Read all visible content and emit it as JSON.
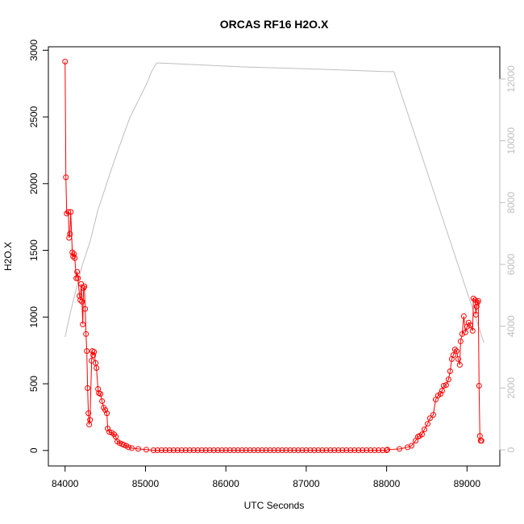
{
  "chart_data": {
    "type": "line",
    "title": "ORCAS RF16 H2O.X",
    "x_label": "UTC Seconds",
    "y_label": "H2O.X",
    "xlim": [
      83792,
      89408
    ],
    "xticks": [
      84000,
      85000,
      86000,
      87000,
      88000,
      89000
    ],
    "ylim": [
      -116,
      3026
    ],
    "yticks": [
      0,
      500,
      1000,
      1500,
      2000,
      2500,
      3000
    ],
    "y2lim": [
      -522,
      13043
    ],
    "y2ticks": [
      0,
      2000,
      4000,
      6000,
      8000,
      10000,
      12000
    ],
    "series": [
      {
        "color": "#bebebe",
        "axis": "y2",
        "markers": false,
        "x": [
          84000,
          84060,
          84210,
          84310,
          84410,
          84510,
          84610,
          84710,
          84810,
          84910,
          85010,
          85080,
          85140,
          86210,
          87210,
          88010,
          88090,
          89210
        ],
        "values": [
          3652,
          4383,
          5948,
          6731,
          7774,
          8557,
          9340,
          10070,
          10775,
          11297,
          11818,
          12262,
          12522,
          12392,
          12314,
          12236,
          12236,
          3470
        ]
      },
      {
        "color": "#ff0000",
        "axis": "y",
        "markers": true,
        "x": [
          84000,
          84010,
          84020,
          84040,
          84050,
          84060,
          84070,
          84090,
          84100,
          84110,
          84120,
          84140,
          84150,
          84160,
          84180,
          84190,
          84200,
          84210,
          84220,
          84230,
          84240,
          84250,
          84260,
          84270,
          84280,
          84290,
          84300,
          84310,
          84330,
          84340,
          84350,
          84360,
          84380,
          84390,
          84410,
          84420,
          84440,
          84460,
          84480,
          84500,
          84520,
          84530,
          84550,
          84580,
          84610,
          84630,
          84650,
          84680,
          84710,
          84730,
          84760,
          84790,
          84830,
          84910,
          85010,
          85100,
          85150,
          85200,
          85250,
          85300,
          85350,
          85400,
          85450,
          85500,
          85550,
          85600,
          85650,
          85700,
          85750,
          85800,
          85850,
          85900,
          85950,
          86000,
          86050,
          86100,
          86150,
          86200,
          86250,
          86300,
          86350,
          86400,
          86450,
          86500,
          86550,
          86600,
          86650,
          86700,
          86750,
          86800,
          86850,
          86900,
          86950,
          87000,
          87050,
          87100,
          87150,
          87200,
          87250,
          87300,
          87350,
          87400,
          87450,
          87500,
          87550,
          87600,
          87650,
          87700,
          87750,
          87800,
          87850,
          87900,
          87950,
          88000,
          88010,
          88160,
          88260,
          88310,
          88360,
          88390,
          88410,
          88440,
          88470,
          88510,
          88540,
          88580,
          88610,
          88640,
          88670,
          88690,
          88710,
          88740,
          88770,
          88790,
          88810,
          88830,
          88850,
          88870,
          88890,
          88910,
          88920,
          88940,
          88960,
          88980,
          89000,
          89020,
          89040,
          89070,
          89080,
          89100,
          89110,
          89120,
          89130,
          89140,
          89150,
          89160,
          89170,
          89180
        ],
        "values": [
          2915,
          2048,
          1776,
          1788,
          1594,
          1624,
          1788,
          1485,
          1455,
          1473,
          1442,
          1291,
          1339,
          1291,
          1158,
          1127,
          1248,
          1115,
          945,
          1218,
          1230,
          1061,
          873,
          745,
          467,
          279,
          194,
          230,
          673,
          745,
          715,
          739,
          655,
          618,
          461,
          430,
          424,
          370,
          321,
          303,
          279,
          164,
          139,
          133,
          121,
          103,
          67,
          55,
          48,
          42,
          36,
          24,
          18,
          12,
          6,
          2,
          2,
          2,
          2,
          2,
          2,
          2,
          2,
          2,
          2,
          2,
          2,
          2,
          2,
          2,
          2,
          2,
          2,
          2,
          2,
          2,
          2,
          2,
          2,
          2,
          2,
          2,
          2,
          2,
          2,
          2,
          2,
          2,
          2,
          2,
          2,
          2,
          2,
          2,
          2,
          2,
          2,
          2,
          2,
          2,
          2,
          2,
          2,
          2,
          2,
          2,
          2,
          2,
          2,
          2,
          2,
          2,
          2,
          2,
          6,
          12,
          24,
          36,
          73,
          103,
          109,
          121,
          158,
          200,
          242,
          267,
          382,
          412,
          424,
          448,
          485,
          491,
          533,
          594,
          685,
          715,
          758,
          745,
          685,
          642,
          818,
          873,
          1006,
          885,
          927,
          958,
          939,
          897,
          1139,
          1127,
          1018,
          1079,
          1109,
          1121,
          485,
          109,
          73,
          73
        ]
      }
    ]
  }
}
